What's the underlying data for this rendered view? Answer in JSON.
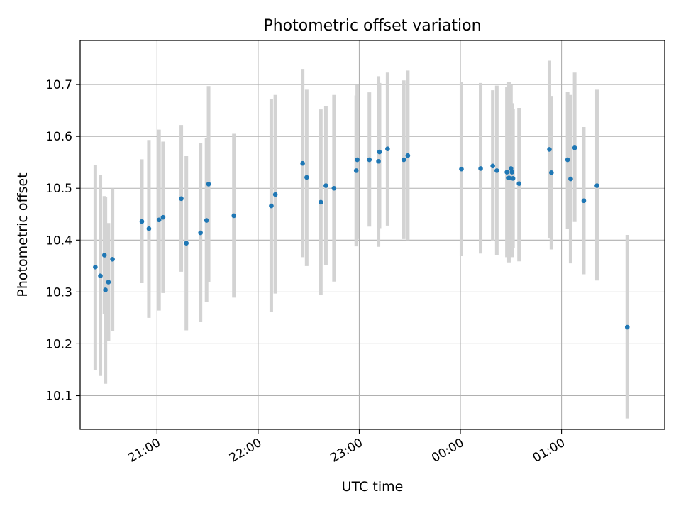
{
  "chart_data": {
    "type": "scatter",
    "title": "Photometric offset variation",
    "xlabel": "UTC time",
    "ylabel": "Photometric offset",
    "x_unit": "hours relative to 00:00 UTC",
    "xlim": [
      -3.76,
      2.02
    ],
    "ylim": [
      10.035,
      10.785
    ],
    "y_ticks": [
      10.1,
      10.2,
      10.3,
      10.4,
      10.5,
      10.6,
      10.7
    ],
    "x_ticks": [
      {
        "value": -3.0,
        "label": "21:00"
      },
      {
        "value": -2.0,
        "label": "22:00"
      },
      {
        "value": -1.0,
        "label": "23:00"
      },
      {
        "value": 0.0,
        "label": "00:00"
      },
      {
        "value": 1.0,
        "label": "01:00"
      }
    ],
    "grid": true,
    "colors": {
      "point": "#1f77b4",
      "errorbar": "#d3d3d3",
      "grid": "#b0b0b0"
    },
    "points": [
      {
        "x": -3.61,
        "y": 10.348,
        "lo": 10.15,
        "hi": 10.545
      },
      {
        "x": -3.56,
        "y": 10.331,
        "lo": 10.138,
        "hi": 10.525
      },
      {
        "x": -3.52,
        "y": 10.371,
        "lo": 10.258,
        "hi": 10.485
      },
      {
        "x": -3.51,
        "y": 10.304,
        "lo": 10.123,
        "hi": 10.483
      },
      {
        "x": -3.48,
        "y": 10.319,
        "lo": 10.205,
        "hi": 10.433
      },
      {
        "x": -3.44,
        "y": 10.363,
        "lo": 10.225,
        "hi": 10.5
      },
      {
        "x": -3.15,
        "y": 10.436,
        "lo": 10.317,
        "hi": 10.556
      },
      {
        "x": -3.08,
        "y": 10.422,
        "lo": 10.25,
        "hi": 10.593
      },
      {
        "x": -2.98,
        "y": 10.439,
        "lo": 10.264,
        "hi": 10.613
      },
      {
        "x": -2.94,
        "y": 10.444,
        "lo": 10.298,
        "hi": 10.59
      },
      {
        "x": -2.76,
        "y": 10.48,
        "lo": 10.339,
        "hi": 10.622
      },
      {
        "x": -2.71,
        "y": 10.394,
        "lo": 10.226,
        "hi": 10.562
      },
      {
        "x": -2.57,
        "y": 10.414,
        "lo": 10.242,
        "hi": 10.587
      },
      {
        "x": -2.51,
        "y": 10.438,
        "lo": 10.28,
        "hi": 10.597
      },
      {
        "x": -2.49,
        "y": 10.508,
        "lo": 10.319,
        "hi": 10.697
      },
      {
        "x": -2.24,
        "y": 10.447,
        "lo": 10.289,
        "hi": 10.605
      },
      {
        "x": -1.87,
        "y": 10.466,
        "lo": 10.262,
        "hi": 10.672
      },
      {
        "x": -1.83,
        "y": 10.488,
        "lo": 10.297,
        "hi": 10.68
      },
      {
        "x": -1.56,
        "y": 10.548,
        "lo": 10.367,
        "hi": 10.73
      },
      {
        "x": -1.52,
        "y": 10.521,
        "lo": 10.35,
        "hi": 10.69
      },
      {
        "x": -1.38,
        "y": 10.473,
        "lo": 10.295,
        "hi": 10.652
      },
      {
        "x": -1.33,
        "y": 10.505,
        "lo": 10.352,
        "hi": 10.658
      },
      {
        "x": -1.25,
        "y": 10.5,
        "lo": 10.32,
        "hi": 10.68
      },
      {
        "x": -1.03,
        "y": 10.534,
        "lo": 10.388,
        "hi": 10.679
      },
      {
        "x": -1.02,
        "y": 10.555,
        "lo": 10.402,
        "hi": 10.699
      },
      {
        "x": -0.9,
        "y": 10.555,
        "lo": 10.426,
        "hi": 10.685
      },
      {
        "x": -0.81,
        "y": 10.552,
        "lo": 10.387,
        "hi": 10.716
      },
      {
        "x": -0.8,
        "y": 10.57,
        "lo": 10.423,
        "hi": 10.703
      },
      {
        "x": -0.72,
        "y": 10.576,
        "lo": 10.428,
        "hi": 10.723
      },
      {
        "x": -0.56,
        "y": 10.555,
        "lo": 10.402,
        "hi": 10.708
      },
      {
        "x": -0.52,
        "y": 10.563,
        "lo": 10.4,
        "hi": 10.727
      },
      {
        "x": 0.01,
        "y": 10.537,
        "lo": 10.369,
        "hi": 10.705
      },
      {
        "x": 0.2,
        "y": 10.538,
        "lo": 10.374,
        "hi": 10.703
      },
      {
        "x": 0.32,
        "y": 10.543,
        "lo": 10.398,
        "hi": 10.689
      },
      {
        "x": 0.36,
        "y": 10.534,
        "lo": 10.371,
        "hi": 10.698
      },
      {
        "x": 0.46,
        "y": 10.531,
        "lo": 10.367,
        "hi": 10.695
      },
      {
        "x": 0.48,
        "y": 10.52,
        "lo": 10.357,
        "hi": 10.705
      },
      {
        "x": 0.5,
        "y": 10.538,
        "lo": 10.378,
        "hi": 10.7
      },
      {
        "x": 0.51,
        "y": 10.531,
        "lo": 10.367,
        "hi": 10.664
      },
      {
        "x": 0.52,
        "y": 10.519,
        "lo": 10.385,
        "hi": 10.653
      },
      {
        "x": 0.58,
        "y": 10.509,
        "lo": 10.359,
        "hi": 10.655
      },
      {
        "x": 0.88,
        "y": 10.575,
        "lo": 10.403,
        "hi": 10.746
      },
      {
        "x": 0.9,
        "y": 10.53,
        "lo": 10.382,
        "hi": 10.678
      },
      {
        "x": 1.06,
        "y": 10.555,
        "lo": 10.421,
        "hi": 10.686
      },
      {
        "x": 1.09,
        "y": 10.518,
        "lo": 10.355,
        "hi": 10.68
      },
      {
        "x": 1.13,
        "y": 10.578,
        "lo": 10.435,
        "hi": 10.723
      },
      {
        "x": 1.22,
        "y": 10.476,
        "lo": 10.334,
        "hi": 10.618
      },
      {
        "x": 1.35,
        "y": 10.505,
        "lo": 10.322,
        "hi": 10.69
      },
      {
        "x": 1.65,
        "y": 10.232,
        "lo": 10.056,
        "hi": 10.41
      }
    ]
  }
}
